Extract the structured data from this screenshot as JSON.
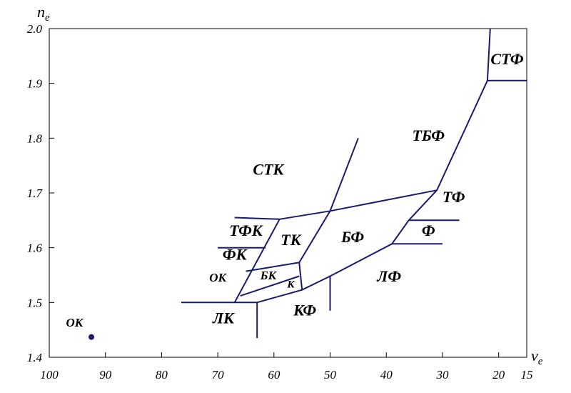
{
  "chart_data": {
    "type": "diagram",
    "x_axis": {
      "label": "ν",
      "label_sub": "e",
      "range": [
        100,
        15
      ],
      "ticks": [
        100,
        90,
        80,
        70,
        60,
        50,
        40,
        30,
        20,
        15
      ],
      "tick_labels": [
        "100",
        "90",
        "80",
        "70",
        "60",
        "50",
        "40",
        "30",
        "20",
        "15"
      ]
    },
    "y_axis": {
      "label": "n",
      "label_sub": "e",
      "range": [
        1.4,
        2.0
      ],
      "ticks": [
        1.4,
        1.5,
        1.6,
        1.7,
        1.8,
        1.9,
        2.0
      ],
      "tick_labels": [
        "1.4",
        "1.5",
        "1.6",
        "1.7",
        "1.8",
        "1.9",
        "2.0"
      ]
    },
    "boundaries": [
      [
        [
          21.5,
          2.0
        ],
        [
          22.0,
          1.905
        ],
        [
          31.0,
          1.705
        ],
        [
          36.0,
          1.65
        ],
        [
          39.0,
          1.607
        ],
        [
          50.0,
          1.548
        ],
        [
          55.0,
          1.523
        ],
        [
          63.0,
          1.5
        ],
        [
          76.5,
          1.5
        ]
      ],
      [
        [
          22.0,
          1.905
        ],
        [
          15.0,
          1.905
        ]
      ],
      [
        [
          31.0,
          1.705
        ],
        [
          50.0,
          1.667
        ],
        [
          59.0,
          1.652
        ],
        [
          67.0,
          1.655
        ]
      ],
      [
        [
          59.0,
          1.652
        ],
        [
          67.0,
          1.5
        ]
      ],
      [
        [
          45.0,
          1.8
        ],
        [
          50.0,
          1.667
        ],
        [
          55.5,
          1.573
        ]
      ],
      [
        [
          55.5,
          1.573
        ],
        [
          65.0,
          1.557
        ]
      ],
      [
        [
          55.5,
          1.573
        ],
        [
          55.0,
          1.523
        ]
      ],
      [
        [
          55.5,
          1.548
        ],
        [
          66.0,
          1.512
        ]
      ],
      [
        [
          63.0,
          1.5
        ],
        [
          63.0,
          1.435
        ]
      ],
      [
        [
          50.0,
          1.548
        ],
        [
          50.0,
          1.485
        ]
      ],
      [
        [
          36.0,
          1.65
        ],
        [
          27.0,
          1.65
        ]
      ],
      [
        [
          39.0,
          1.607
        ],
        [
          30.0,
          1.607
        ]
      ],
      [
        [
          61.5,
          1.6
        ],
        [
          70.0,
          1.6
        ]
      ]
    ],
    "regions": [
      {
        "label": "СТФ",
        "x": 18.5,
        "y": 1.935,
        "size": "lg"
      },
      {
        "label": "ТБФ",
        "x": 32.5,
        "y": 1.795,
        "size": "lg"
      },
      {
        "label": "СТК",
        "x": 61.0,
        "y": 1.733,
        "size": "lg"
      },
      {
        "label": "ТФ",
        "x": 28.0,
        "y": 1.683,
        "size": "lg"
      },
      {
        "label": "ТФК",
        "x": 65.0,
        "y": 1.622,
        "size": "lg"
      },
      {
        "label": "ТК",
        "x": 57.0,
        "y": 1.605,
        "size": "lg"
      },
      {
        "label": "БФ",
        "x": 46.0,
        "y": 1.61,
        "size": "lg"
      },
      {
        "label": "Ф",
        "x": 32.5,
        "y": 1.622,
        "size": "lg"
      },
      {
        "label": "ФК",
        "x": 67.0,
        "y": 1.578,
        "size": "lg"
      },
      {
        "label": "ЛФ",
        "x": 39.5,
        "y": 1.538,
        "size": "lg"
      },
      {
        "label": "ОК",
        "x": 70.0,
        "y": 1.538,
        "size": "sm"
      },
      {
        "label": "БК",
        "x": 61.0,
        "y": 1.542,
        "size": "sm"
      },
      {
        "label": "К",
        "x": 57.0,
        "y": 1.527,
        "size": "xs"
      },
      {
        "label": "ЛК",
        "x": 69.0,
        "y": 1.462,
        "size": "lg"
      },
      {
        "label": "КФ",
        "x": 54.5,
        "y": 1.476,
        "size": "lg"
      },
      {
        "label": "ОК",
        "x": 95.5,
        "y": 1.456,
        "size": "sm"
      }
    ],
    "points": [
      {
        "x": 92.5,
        "y": 1.437
      }
    ],
    "grid": false
  }
}
